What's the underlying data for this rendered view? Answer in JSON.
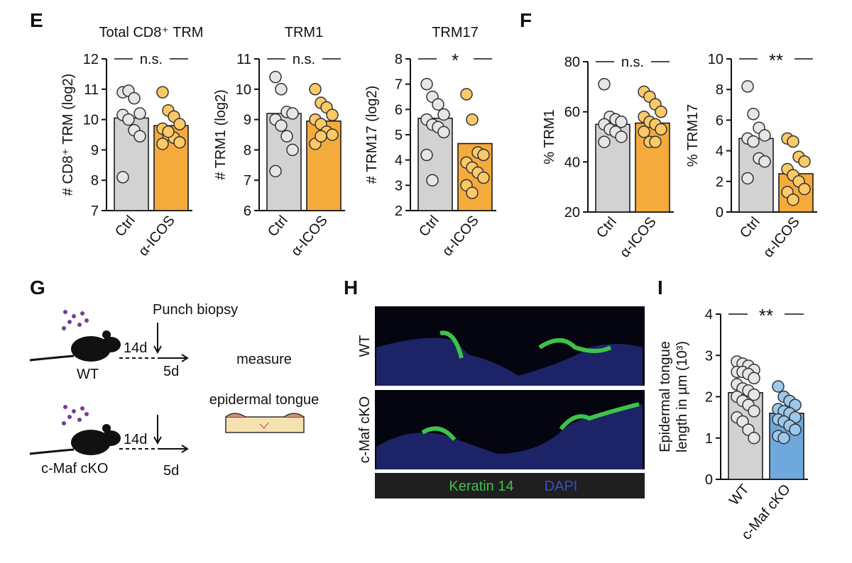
{
  "chart_data": [
    {
      "type": "bar",
      "title": "Total CD8⁺ TRM",
      "ylabel": [
        "# CD8⁺ TRM (log2)"
      ],
      "categories": [
        "Ctrl",
        "α-ICOS"
      ],
      "values": [
        10.05,
        9.8
      ],
      "colors": [
        "#d2d2d2",
        "#f5aa3c"
      ],
      "point_colors": [
        "#e6e6e6",
        "#fbc967"
      ],
      "points": [
        [
          10.9,
          10.95,
          10.7,
          10.2,
          10.15,
          10.0,
          9.65,
          9.45,
          8.1
        ],
        [
          10.9,
          10.3,
          10.1,
          9.85,
          9.7,
          9.5,
          9.4,
          9.25,
          9.2,
          9.6
        ]
      ],
      "significance": "n.s.",
      "ylim": [
        7,
        12
      ],
      "yticks": [
        7,
        8,
        9,
        10,
        11,
        12
      ]
    },
    {
      "type": "bar",
      "title": "TRM1",
      "ylabel": [
        "# TRM1 (log2)"
      ],
      "categories": [
        "Ctrl",
        "α-ICOS"
      ],
      "values": [
        9.2,
        8.95
      ],
      "colors": [
        "#d2d2d2",
        "#f5aa3c"
      ],
      "point_colors": [
        "#e6e6e6",
        "#fbc967"
      ],
      "points": [
        [
          10.4,
          10.0,
          9.25,
          9.2,
          9.0,
          8.8,
          8.45,
          8.0,
          7.3
        ],
        [
          10.0,
          9.55,
          9.4,
          9.15,
          9.0,
          8.85,
          8.6,
          8.5,
          8.2,
          8.45
        ]
      ],
      "significance": "n.s.",
      "ylim": [
        6,
        11
      ],
      "yticks": [
        6,
        7,
        8,
        9,
        10,
        11
      ]
    },
    {
      "type": "bar",
      "title": "TRM17",
      "ylabel": [
        "# TRM17 (log2)"
      ],
      "categories": [
        "Ctrl",
        "α-ICOS"
      ],
      "values": [
        5.65,
        4.65
      ],
      "colors": [
        "#d2d2d2",
        "#f5aa3c"
      ],
      "point_colors": [
        "#e6e6e6",
        "#fbc967"
      ],
      "points": [
        [
          7.0,
          6.5,
          6.2,
          5.8,
          5.6,
          5.4,
          5.3,
          5.1,
          4.2,
          3.2
        ],
        [
          6.6,
          5.6,
          4.3,
          4.2,
          3.9,
          3.7,
          3.5,
          3.3,
          3.0,
          2.7
        ]
      ],
      "significance": "*",
      "ylim": [
        2,
        8
      ],
      "yticks": [
        2,
        3,
        4,
        5,
        6,
        7,
        8
      ]
    },
    {
      "type": "bar",
      "ylabel": [
        "% TRM1"
      ],
      "categories": [
        "Ctrl",
        "α-ICOS"
      ],
      "values": [
        55,
        55.5
      ],
      "colors": [
        "#d2d2d2",
        "#f5aa3c"
      ],
      "point_colors": [
        "#e6e6e6",
        "#fbc967"
      ],
      "points": [
        [
          71,
          58,
          57,
          56,
          55,
          53,
          52,
          50,
          48
        ],
        [
          68,
          66,
          63,
          60,
          58,
          56,
          55,
          53,
          52,
          48,
          48
        ]
      ],
      "significance": "n.s.",
      "ylim": [
        20,
        80
      ],
      "yticks": [
        20,
        40,
        60,
        80
      ]
    },
    {
      "type": "bar",
      "ylabel": [
        "% TRM17"
      ],
      "categories": [
        "Ctrl",
        "α-ICOS"
      ],
      "values": [
        4.8,
        2.5
      ],
      "colors": [
        "#d2d2d2",
        "#f5aa3c"
      ],
      "point_colors": [
        "#e6e6e6",
        "#fbc967"
      ],
      "points": [
        [
          8.2,
          6.4,
          5.5,
          5.0,
          4.8,
          4.6,
          3.5,
          3.3,
          2.2
        ],
        [
          4.8,
          4.6,
          3.6,
          3.3,
          2.8,
          2.4,
          2.0,
          1.5,
          1.3,
          0.8
        ]
      ],
      "significance": "**",
      "ylim": [
        0,
        10
      ],
      "yticks": [
        0,
        2,
        4,
        6,
        8,
        10
      ]
    },
    {
      "type": "bar",
      "ylabel": [
        "Epidermal tongue",
        "length in µm (10³)"
      ],
      "categories": [
        "WT",
        "c-Maf cKO"
      ],
      "values": [
        2.1,
        1.6
      ],
      "colors": [
        "#d2d2d2",
        "#6fa8dc"
      ],
      "point_colors": [
        "#e6e6e6",
        "#9cc8ec"
      ],
      "points": [
        [
          2.85,
          2.8,
          2.75,
          2.65,
          2.6,
          2.6,
          2.55,
          2.45,
          2.3,
          2.2,
          2.15,
          2.05,
          2.0,
          1.9,
          1.8,
          1.65,
          1.5,
          1.4,
          1.2,
          1.0
        ],
        [
          2.25,
          2.0,
          1.9,
          1.8,
          1.7,
          1.65,
          1.6,
          1.5,
          1.45,
          1.4,
          1.3,
          1.2,
          1.05,
          1.0
        ]
      ],
      "significance": "**",
      "ylim": [
        0,
        4
      ],
      "yticks": [
        0,
        1,
        2,
        3,
        4
      ]
    }
  ],
  "figure": {
    "panels": [
      "E",
      "F",
      "G",
      "H",
      "I"
    ],
    "diagram": {
      "biopsy": "Punch biopsy",
      "day1": "14d",
      "day2": "5d",
      "mouse1": "WT",
      "mouse2": "c-Maf cKO",
      "day3": "14d",
      "day4": "5d",
      "measure": [
        "measure",
        "epidermal tongue"
      ]
    },
    "image": {
      "row1": "WT",
      "row2": "c-Maf cKO",
      "stain1": "Keratin 14",
      "stain2": "DAPI"
    }
  }
}
